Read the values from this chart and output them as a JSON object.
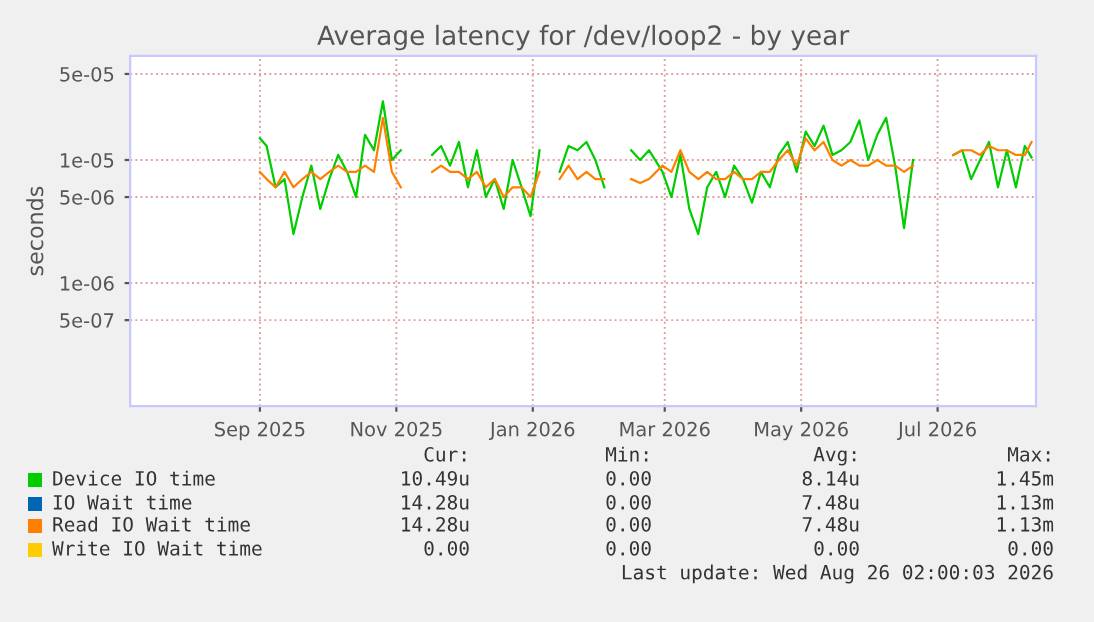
{
  "chart_data": {
    "type": "line",
    "title": "Average latency for /dev/loop2 - by year",
    "ylabel": "seconds",
    "log": "y",
    "grid": true,
    "legend": "bottom",
    "ylim": [
      1e-07,
      7e-05
    ],
    "yticks": [
      5e-05,
      1e-05,
      5e-06,
      1e-06,
      5e-07
    ],
    "xlim": [
      "2025-07-05",
      "2026-08-14"
    ],
    "xticks": [
      {
        "value": "2025-09-01",
        "label": "Sep 2025"
      },
      {
        "value": "2025-11-01",
        "label": "Nov 2025"
      },
      {
        "value": "2026-01-01",
        "label": "Jan 2026"
      },
      {
        "value": "2026-03-01",
        "label": "Mar 2026"
      },
      {
        "value": "2026-05-01",
        "label": "May 2026"
      },
      {
        "value": "2026-07-01",
        "label": "Jul 2026"
      }
    ],
    "x": [
      "2025-09-01",
      "2025-09-04",
      "2025-09-08",
      "2025-09-12",
      "2025-09-16",
      "2025-09-20",
      "2025-09-24",
      "2025-09-28",
      "2025-10-02",
      "2025-10-06",
      "2025-10-10",
      "2025-10-14",
      "2025-10-18",
      "2025-10-22",
      "2025-10-26",
      "2025-10-30",
      "2025-11-03",
      "2025-11-10",
      "2025-11-17",
      "2025-11-21",
      "2025-11-25",
      "2025-11-29",
      "2025-12-03",
      "2025-12-07",
      "2025-12-11",
      "2025-12-15",
      "2025-12-19",
      "2025-12-23",
      "2025-12-27",
      "2025-12-31",
      "2026-01-04",
      "2026-01-09",
      "2026-01-13",
      "2026-01-17",
      "2026-01-21",
      "2026-01-25",
      "2026-01-29",
      "2026-02-02",
      "2026-02-08",
      "2026-02-14",
      "2026-02-18",
      "2026-02-22",
      "2026-02-28",
      "2026-03-04",
      "2026-03-08",
      "2026-03-12",
      "2026-03-16",
      "2026-03-20",
      "2026-03-24",
      "2026-03-28",
      "2026-04-01",
      "2026-04-05",
      "2026-04-09",
      "2026-04-13",
      "2026-04-17",
      "2026-04-21",
      "2026-04-25",
      "2026-04-29",
      "2026-05-03",
      "2026-05-07",
      "2026-05-11",
      "2026-05-15",
      "2026-05-19",
      "2026-05-23",
      "2026-05-27",
      "2026-05-31",
      "2026-06-04",
      "2026-06-08",
      "2026-06-12",
      "2026-06-16",
      "2026-06-20",
      "2026-06-30",
      "2026-07-08",
      "2026-07-12",
      "2026-07-16",
      "2026-07-20",
      "2026-07-24",
      "2026-07-28",
      "2026-08-01",
      "2026-08-05",
      "2026-08-09",
      "2026-08-12"
    ],
    "series": [
      {
        "name": "Device IO time",
        "color": "#00cc00",
        "values": [
          1.5e-05,
          1.3e-05,
          6e-06,
          7e-06,
          2.5e-06,
          5e-06,
          9e-06,
          4e-06,
          7e-06,
          1.1e-05,
          8e-06,
          5e-06,
          1.6e-05,
          1.2e-05,
          3e-05,
          1e-05,
          1.2e-05,
          null,
          1.1e-05,
          1.3e-05,
          9e-06,
          1.4e-05,
          6e-06,
          1.2e-05,
          5e-06,
          7e-06,
          4e-06,
          1e-05,
          6e-06,
          3.5e-06,
          1.2e-05,
          null,
          8e-06,
          1.3e-05,
          1.2e-05,
          1.4e-05,
          1e-05,
          6e-06,
          null,
          1.2e-05,
          1e-05,
          1.2e-05,
          8e-06,
          5e-06,
          1.1e-05,
          4e-06,
          2.5e-06,
          6e-06,
          8e-06,
          5e-06,
          9e-06,
          7e-06,
          4.5e-06,
          8e-06,
          6e-06,
          1.1e-05,
          1.4e-05,
          8e-06,
          1.7e-05,
          1.3e-05,
          1.9e-05,
          1.1e-05,
          1.2e-05,
          1.4e-05,
          2.1e-05,
          1e-05,
          1.6e-05,
          2.2e-05,
          9e-06,
          2.8e-06,
          1e-05,
          null,
          1.1e-05,
          1.2e-05,
          7e-06,
          1e-05,
          1.4e-05,
          6e-06,
          1.2e-05,
          6e-06,
          1.3e-05,
          1.05e-05
        ]
      },
      {
        "name": "IO Wait time",
        "color": "#0066b3",
        "values": [
          null,
          null,
          null,
          null,
          null,
          null,
          null,
          null,
          null,
          null,
          null,
          null,
          null,
          null,
          null,
          null,
          null,
          null,
          null,
          null,
          null,
          null,
          null,
          null,
          null,
          null,
          null,
          null,
          null,
          null,
          null,
          null,
          null,
          null,
          null,
          null,
          null,
          null,
          null,
          null,
          null,
          null,
          null,
          null,
          null,
          null,
          null,
          null,
          null,
          null,
          null,
          null,
          null,
          null,
          null,
          null,
          null,
          null,
          null,
          null,
          null,
          null,
          null,
          null,
          null,
          null,
          null,
          null,
          null,
          null,
          null,
          null,
          null,
          null,
          null,
          null,
          null,
          null,
          null,
          null,
          null,
          null
        ]
      },
      {
        "name": "Read IO Wait time",
        "color": "#ff8000",
        "values": [
          8e-06,
          7e-06,
          6e-06,
          8e-06,
          6e-06,
          7e-06,
          8e-06,
          7e-06,
          8e-06,
          9e-06,
          8e-06,
          8e-06,
          9e-06,
          8e-06,
          2.2e-05,
          8e-06,
          6e-06,
          null,
          8e-06,
          9e-06,
          8e-06,
          8e-06,
          7e-06,
          8e-06,
          6e-06,
          7e-06,
          5e-06,
          6e-06,
          6e-06,
          5e-06,
          8e-06,
          null,
          7e-06,
          9e-06,
          7e-06,
          8e-06,
          7e-06,
          7e-06,
          null,
          7e-06,
          6.5e-06,
          7e-06,
          9e-06,
          8e-06,
          1.2e-05,
          8e-06,
          7e-06,
          8e-06,
          7e-06,
          7e-06,
          8e-06,
          7e-06,
          7e-06,
          8e-06,
          8e-06,
          1e-05,
          1.2e-05,
          9e-06,
          1.5e-05,
          1.2e-05,
          1.4e-05,
          1e-05,
          9e-06,
          1e-05,
          9e-06,
          9e-06,
          1e-05,
          9e-06,
          9e-06,
          8e-06,
          9e-06,
          null,
          1.1e-05,
          1.2e-05,
          1.2e-05,
          1.1e-05,
          1.3e-05,
          1.2e-05,
          1.2e-05,
          1.1e-05,
          1.1e-05,
          1.4e-05
        ]
      },
      {
        "name": "Write IO Wait time",
        "color": "#ffcc00",
        "values": [
          null,
          null,
          null,
          null,
          null,
          null,
          null,
          null,
          null,
          null,
          null,
          null,
          null,
          null,
          null,
          null,
          null,
          null,
          null,
          null,
          null,
          null,
          null,
          null,
          null,
          null,
          null,
          null,
          null,
          null,
          null,
          null,
          null,
          null,
          null,
          null,
          null,
          null,
          null,
          null,
          null,
          null,
          null,
          null,
          null,
          null,
          null,
          null,
          null,
          null,
          null,
          null,
          null,
          null,
          null,
          null,
          null,
          null,
          null,
          null,
          null,
          null,
          null,
          null,
          null,
          null,
          null,
          null,
          null,
          null,
          null,
          null,
          null,
          null,
          null,
          null,
          null,
          null,
          null,
          null,
          null,
          null
        ]
      }
    ],
    "annotations": [
      "Cur:",
      "Min:",
      "Avg:",
      "Max:",
      "10.49u",
      "0.00",
      "8.14u",
      "1.45m",
      "14.28u",
      "0.00",
      "7.48u",
      "1.13m",
      "14.28u",
      "0.00",
      "7.48u",
      "1.13m",
      "0.00",
      "0.00",
      "0.00",
      "0.00",
      "Last update: Wed Aug 26 02:00:03 2026"
    ]
  }
}
